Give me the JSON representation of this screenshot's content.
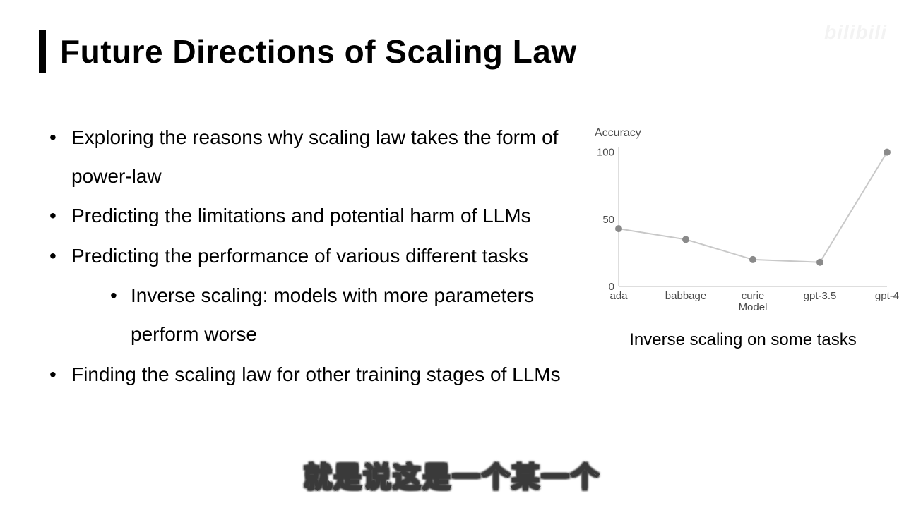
{
  "title": "Future Directions of Scaling Law",
  "bullets": {
    "b1": "Exploring the reasons why scaling law takes the form of power-law",
    "b2": "Predicting the limitations and potential harm of LLMs",
    "b3": "Predicting the performance of various different tasks",
    "b3_sub": "Inverse scaling: models with more parameters perform worse",
    "b4": "Finding the scaling law for other training stages of LLMs"
  },
  "chart": {
    "type": "line",
    "ylabel": "Accuracy",
    "caption": "Inverse scaling on some tasks",
    "xaxis_sub": "Model",
    "categories": [
      "ada",
      "babbage",
      "curie",
      "gpt-3.5",
      "gpt-4"
    ],
    "values": [
      43,
      35,
      20,
      18,
      100
    ],
    "yticks": [
      0,
      50,
      100
    ],
    "ylim_min": 0,
    "ylim_max": 104,
    "point_color": "#8a8a8a",
    "line_color": "#c8c8c8",
    "axis_color": "#bdbdbd",
    "tick_font_color": "#4a4a4a",
    "background": "#ffffff",
    "point_radius": 5,
    "line_width": 2,
    "label_fontsize": 15
  },
  "watermark": "bilibili",
  "subtitle": "就是说这是一个某一个"
}
